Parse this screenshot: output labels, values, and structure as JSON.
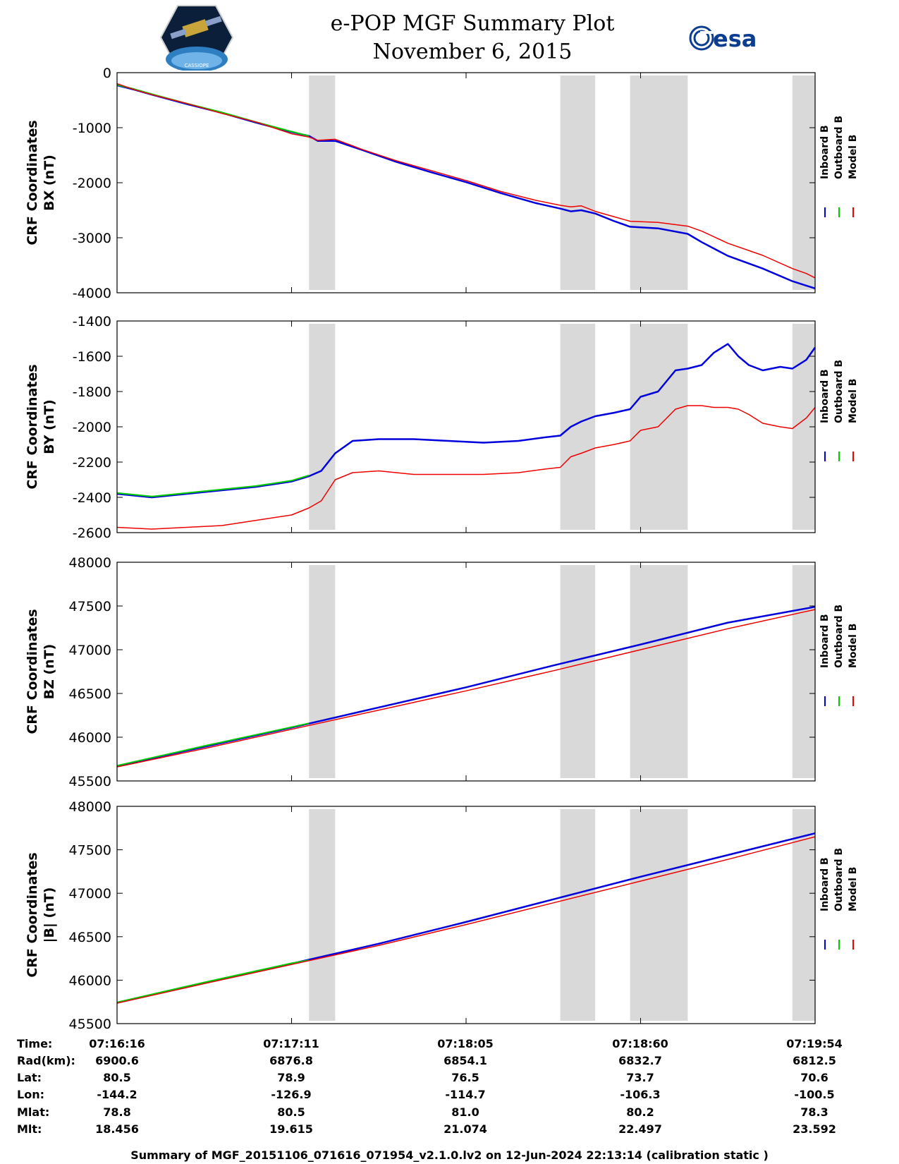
{
  "header": {
    "title": "e-POP MGF Summary Plot",
    "subtitle": "November 6, 2015",
    "logo_left_text": "CASSIOPE",
    "logo_right_text": "esa"
  },
  "colors": {
    "inboard": "#0000dd",
    "outboard": "#00cc00",
    "model": "#ee0000",
    "shade": "#d9d9d9"
  },
  "chart_data": [
    {
      "type": "line",
      "ylabel_line1": "CRF Coordinates",
      "ylabel_line2": "BX (nT)",
      "ylim": [
        -4000,
        0
      ],
      "yticks": [
        0,
        -1000,
        -2000,
        -3000,
        -4000
      ],
      "ytick_labels": [
        "0",
        "-1000",
        "-2000",
        "-3000",
        "-4000"
      ],
      "xlim": [
        0,
        4
      ],
      "xticks": [
        0,
        1,
        2,
        3,
        4
      ],
      "shaded_regions": [
        [
          1.1,
          1.25
        ],
        [
          2.54,
          2.74
        ],
        [
          2.94,
          3.27
        ],
        [
          3.87,
          4.0
        ]
      ],
      "legend": [
        "Inboard B",
        "Outboard B",
        "Model B"
      ],
      "series": [
        {
          "name": "Inboard B",
          "color_key": "inboard",
          "x": [
            0,
            0.1,
            0.2,
            0.4,
            0.6,
            0.8,
            1.0,
            1.1,
            1.15,
            1.25,
            1.4,
            1.6,
            1.8,
            2.0,
            2.2,
            2.4,
            2.54,
            2.6,
            2.66,
            2.74,
            2.85,
            2.94,
            3.1,
            3.27,
            3.35,
            3.5,
            3.7,
            3.87,
            3.95,
            4.0
          ],
          "values": [
            -230,
            -310,
            -400,
            -570,
            -730,
            -910,
            -1080,
            -1150,
            -1240,
            -1240,
            -1400,
            -1620,
            -1810,
            -1990,
            -2190,
            -2370,
            -2470,
            -2520,
            -2500,
            -2560,
            -2700,
            -2800,
            -2830,
            -2930,
            -3080,
            -3330,
            -3560,
            -3790,
            -3870,
            -3920
          ]
        },
        {
          "name": "Outboard B",
          "color_key": "outboard",
          "x": [
            0,
            0.1,
            0.2,
            0.4,
            0.6,
            0.8,
            1.0,
            1.1
          ],
          "values": [
            -220,
            -300,
            -390,
            -560,
            -720,
            -900,
            -1070,
            -1150
          ]
        },
        {
          "name": "Model B",
          "color_key": "model",
          "x": [
            0,
            0.1,
            0.2,
            0.4,
            0.6,
            0.8,
            1.0,
            1.1,
            1.15,
            1.25,
            1.4,
            1.6,
            1.8,
            2.0,
            2.2,
            2.4,
            2.54,
            2.6,
            2.66,
            2.74,
            2.85,
            2.94,
            3.1,
            3.27,
            3.35,
            3.5,
            3.7,
            3.87,
            3.95,
            4.0
          ],
          "values": [
            -200,
            -310,
            -400,
            -560,
            -740,
            -900,
            -1110,
            -1170,
            -1230,
            -1210,
            -1390,
            -1600,
            -1780,
            -1960,
            -2160,
            -2320,
            -2410,
            -2440,
            -2420,
            -2520,
            -2620,
            -2700,
            -2720,
            -2790,
            -2880,
            -3100,
            -3320,
            -3560,
            -3650,
            -3730
          ]
        }
      ]
    },
    {
      "type": "line",
      "ylabel_line1": "CRF Coordinates",
      "ylabel_line2": "BY (nT)",
      "ylim": [
        -2600,
        -1400
      ],
      "yticks": [
        -1400,
        -1600,
        -1800,
        -2000,
        -2200,
        -2400,
        -2600
      ],
      "ytick_labels": [
        "-1400",
        "-1600",
        "-1800",
        "-2000",
        "-2200",
        "-2400",
        "-2600"
      ],
      "xlim": [
        0,
        4
      ],
      "xticks": [
        0,
        1,
        2,
        3,
        4
      ],
      "shaded_regions": [
        [
          1.1,
          1.25
        ],
        [
          2.54,
          2.74
        ],
        [
          2.94,
          3.27
        ],
        [
          3.87,
          4.0
        ]
      ],
      "legend": [
        "Inboard B",
        "Outboard B",
        "Model B"
      ],
      "series": [
        {
          "name": "Inboard B",
          "color_key": "inboard",
          "x": [
            0,
            0.1,
            0.2,
            0.4,
            0.6,
            0.8,
            1.0,
            1.1,
            1.17,
            1.25,
            1.35,
            1.5,
            1.7,
            1.9,
            2.1,
            2.3,
            2.45,
            2.54,
            2.6,
            2.66,
            2.74,
            2.85,
            2.94,
            3.0,
            3.1,
            3.2,
            3.27,
            3.35,
            3.42,
            3.5,
            3.56,
            3.62,
            3.7,
            3.8,
            3.87,
            3.95,
            4.0
          ],
          "values": [
            -2380,
            -2390,
            -2400,
            -2380,
            -2360,
            -2340,
            -2310,
            -2280,
            -2250,
            -2150,
            -2080,
            -2070,
            -2070,
            -2080,
            -2090,
            -2080,
            -2060,
            -2050,
            -2000,
            -1970,
            -1940,
            -1920,
            -1900,
            -1830,
            -1800,
            -1680,
            -1670,
            -1650,
            -1580,
            -1530,
            -1600,
            -1650,
            -1680,
            -1660,
            -1670,
            -1620,
            -1550
          ]
        },
        {
          "name": "Outboard B",
          "color_key": "outboard",
          "x": [
            0,
            0.1,
            0.2,
            0.4,
            0.6,
            0.8,
            1.0,
            1.1
          ],
          "values": [
            -2375,
            -2385,
            -2395,
            -2375,
            -2355,
            -2335,
            -2305,
            -2275
          ]
        },
        {
          "name": "Model B",
          "color_key": "model",
          "x": [
            0,
            0.1,
            0.2,
            0.4,
            0.6,
            0.8,
            1.0,
            1.1,
            1.17,
            1.25,
            1.35,
            1.5,
            1.7,
            1.9,
            2.1,
            2.3,
            2.45,
            2.54,
            2.6,
            2.66,
            2.74,
            2.85,
            2.94,
            3.0,
            3.1,
            3.2,
            3.27,
            3.35,
            3.42,
            3.5,
            3.56,
            3.62,
            3.7,
            3.8,
            3.87,
            3.95,
            4.0
          ],
          "values": [
            -2570,
            -2575,
            -2580,
            -2570,
            -2560,
            -2530,
            -2500,
            -2460,
            -2420,
            -2300,
            -2260,
            -2250,
            -2270,
            -2270,
            -2270,
            -2260,
            -2240,
            -2230,
            -2170,
            -2150,
            -2120,
            -2100,
            -2080,
            -2020,
            -2000,
            -1900,
            -1880,
            -1880,
            -1890,
            -1890,
            -1900,
            -1930,
            -1980,
            -2000,
            -2010,
            -1950,
            -1890
          ]
        }
      ]
    },
    {
      "type": "line",
      "ylabel_line1": "CRF Coordinates",
      "ylabel_line2": "BZ (nT)",
      "ylim": [
        45500,
        48000
      ],
      "yticks": [
        48000,
        47500,
        47000,
        46500,
        46000,
        45500
      ],
      "ytick_labels": [
        "48000",
        "47500",
        "47000",
        "46500",
        "46000",
        "45500"
      ],
      "xlim": [
        0,
        4
      ],
      "xticks": [
        0,
        1,
        2,
        3,
        4
      ],
      "shaded_regions": [
        [
          1.1,
          1.25
        ],
        [
          2.54,
          2.74
        ],
        [
          2.94,
          3.27
        ],
        [
          3.87,
          4.0
        ]
      ],
      "legend": [
        "Inboard B",
        "Outboard B",
        "Model B"
      ],
      "series": [
        {
          "name": "Inboard B",
          "color_key": "inboard",
          "x": [
            0,
            0.5,
            1.0,
            1.5,
            2.0,
            2.5,
            3.0,
            3.5,
            4.0
          ],
          "values": [
            45670,
            45890,
            46110,
            46340,
            46570,
            46820,
            47060,
            47310,
            47490
          ]
        },
        {
          "name": "Outboard B",
          "color_key": "outboard",
          "x": [
            0,
            0.5,
            1.0,
            1.1
          ],
          "values": [
            45675,
            45900,
            46115,
            46160
          ]
        },
        {
          "name": "Model B",
          "color_key": "model",
          "x": [
            0,
            0.5,
            1.0,
            1.5,
            2.0,
            2.5,
            3.0,
            3.5,
            4.0
          ],
          "values": [
            45660,
            45870,
            46090,
            46310,
            46530,
            46760,
            47000,
            47240,
            47460
          ]
        }
      ]
    },
    {
      "type": "line",
      "ylabel_line1": "CRF Coordinates",
      "ylabel_line2": "|B| (nT)",
      "ylim": [
        45500,
        48000
      ],
      "yticks": [
        48000,
        47500,
        47000,
        46500,
        46000,
        45500
      ],
      "ytick_labels": [
        "48000",
        "47500",
        "47000",
        "46500",
        "46000",
        "45500"
      ],
      "xlim": [
        0,
        4
      ],
      "xticks": [
        0,
        1,
        2,
        3,
        4
      ],
      "shaded_regions": [
        [
          1.1,
          1.25
        ],
        [
          2.54,
          2.74
        ],
        [
          2.94,
          3.27
        ],
        [
          3.87,
          4.0
        ]
      ],
      "legend": [
        "Inboard B",
        "Outboard B",
        "Model B"
      ],
      "series": [
        {
          "name": "Inboard B",
          "color_key": "inboard",
          "x": [
            0,
            0.5,
            1.0,
            1.5,
            2.0,
            2.5,
            3.0,
            3.5,
            4.0
          ],
          "values": [
            45740,
            45970,
            46190,
            46420,
            46670,
            46930,
            47190,
            47440,
            47690
          ]
        },
        {
          "name": "Outboard B",
          "color_key": "outboard",
          "x": [
            0,
            0.5,
            1.0,
            1.1
          ],
          "values": [
            45745,
            45975,
            46195,
            46230
          ]
        },
        {
          "name": "Model B",
          "color_key": "model",
          "x": [
            0,
            0.5,
            1.0,
            1.5,
            2.0,
            2.5,
            3.0,
            3.5,
            4.0
          ],
          "values": [
            45735,
            45960,
            46180,
            46400,
            46640,
            46890,
            47140,
            47390,
            47650
          ]
        }
      ]
    }
  ],
  "info_table": {
    "labels": [
      "Time:",
      "Rad(km):",
      "Lat:",
      "Lon:",
      "Mlat:",
      "Mlt:"
    ],
    "columns": [
      [
        "07:16:16",
        "6900.6",
        "80.5",
        "-144.2",
        "78.8",
        "18.456"
      ],
      [
        "07:17:11",
        "6876.8",
        "78.9",
        "-126.9",
        "80.5",
        "19.615"
      ],
      [
        "07:18:05",
        "6854.1",
        "76.5",
        "-114.7",
        "81.0",
        "21.074"
      ],
      [
        "07:18:60",
        "6832.7",
        "73.7",
        "-106.3",
        "80.2",
        "22.497"
      ],
      [
        "07:19:54",
        "6812.5",
        "70.6",
        "-100.5",
        "78.3",
        "23.592"
      ]
    ]
  },
  "footer": "Summary of MGF_20151106_071616_071954_v2.1.0.lv2 on 12-Jun-2024 22:13:14 (calibration static )"
}
